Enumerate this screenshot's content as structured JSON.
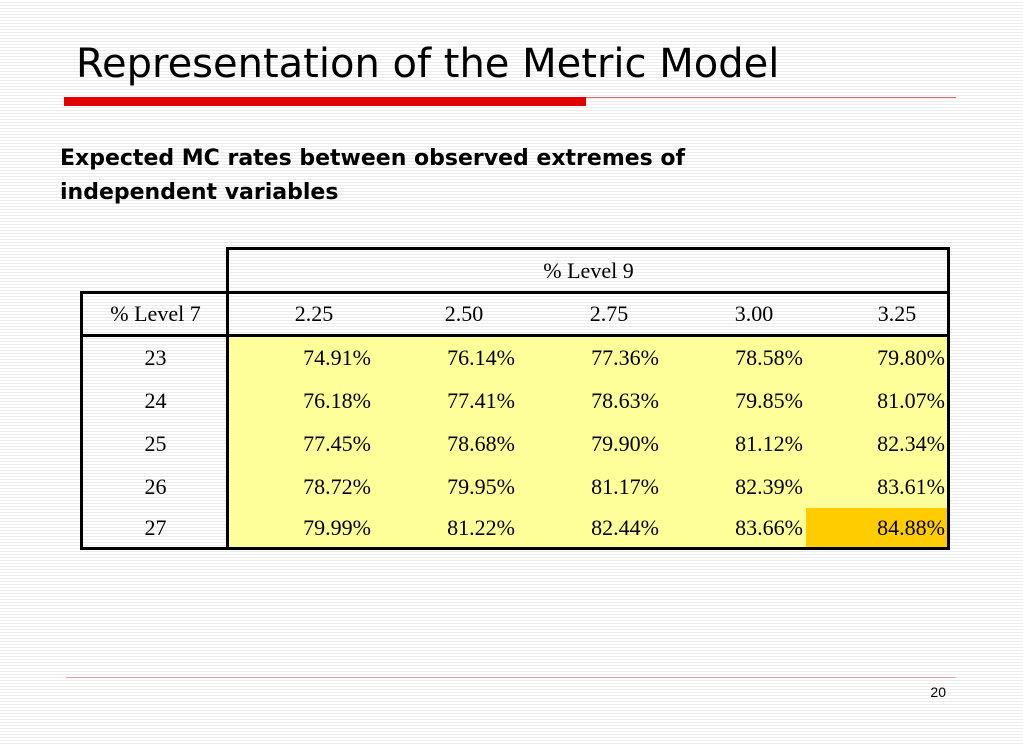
{
  "slide": {
    "title": "Representation of the Metric Model",
    "subtitle_lines": [
      "Expected MC rates between observed extremes of",
      "independent variables"
    ],
    "page_number": "20"
  },
  "table": {
    "column_group_header": "% Level 9",
    "row_header_label": "% Level 7",
    "columns": [
      "2.25",
      "2.50",
      "2.75",
      "3.00",
      "3.25"
    ],
    "rows": [
      {
        "label": "23",
        "values": [
          "74.91%",
          "76.14%",
          "77.36%",
          "78.58%",
          "79.80%"
        ]
      },
      {
        "label": "24",
        "values": [
          "76.18%",
          "77.41%",
          "78.63%",
          "79.85%",
          "81.07%"
        ]
      },
      {
        "label": "25",
        "values": [
          "77.45%",
          "78.68%",
          "79.90%",
          "81.12%",
          "82.34%"
        ]
      },
      {
        "label": "26",
        "values": [
          "78.72%",
          "79.95%",
          "81.17%",
          "82.39%",
          "83.61%"
        ]
      },
      {
        "label": "27",
        "values": [
          "79.99%",
          "81.22%",
          "82.44%",
          "83.66%",
          "84.88%"
        ]
      }
    ],
    "highlight_fill": "#ffff99",
    "max_cell_fill": "#ffcc00"
  },
  "colors": {
    "title_bar": "#e00000",
    "rule": "#e6a0a0"
  }
}
